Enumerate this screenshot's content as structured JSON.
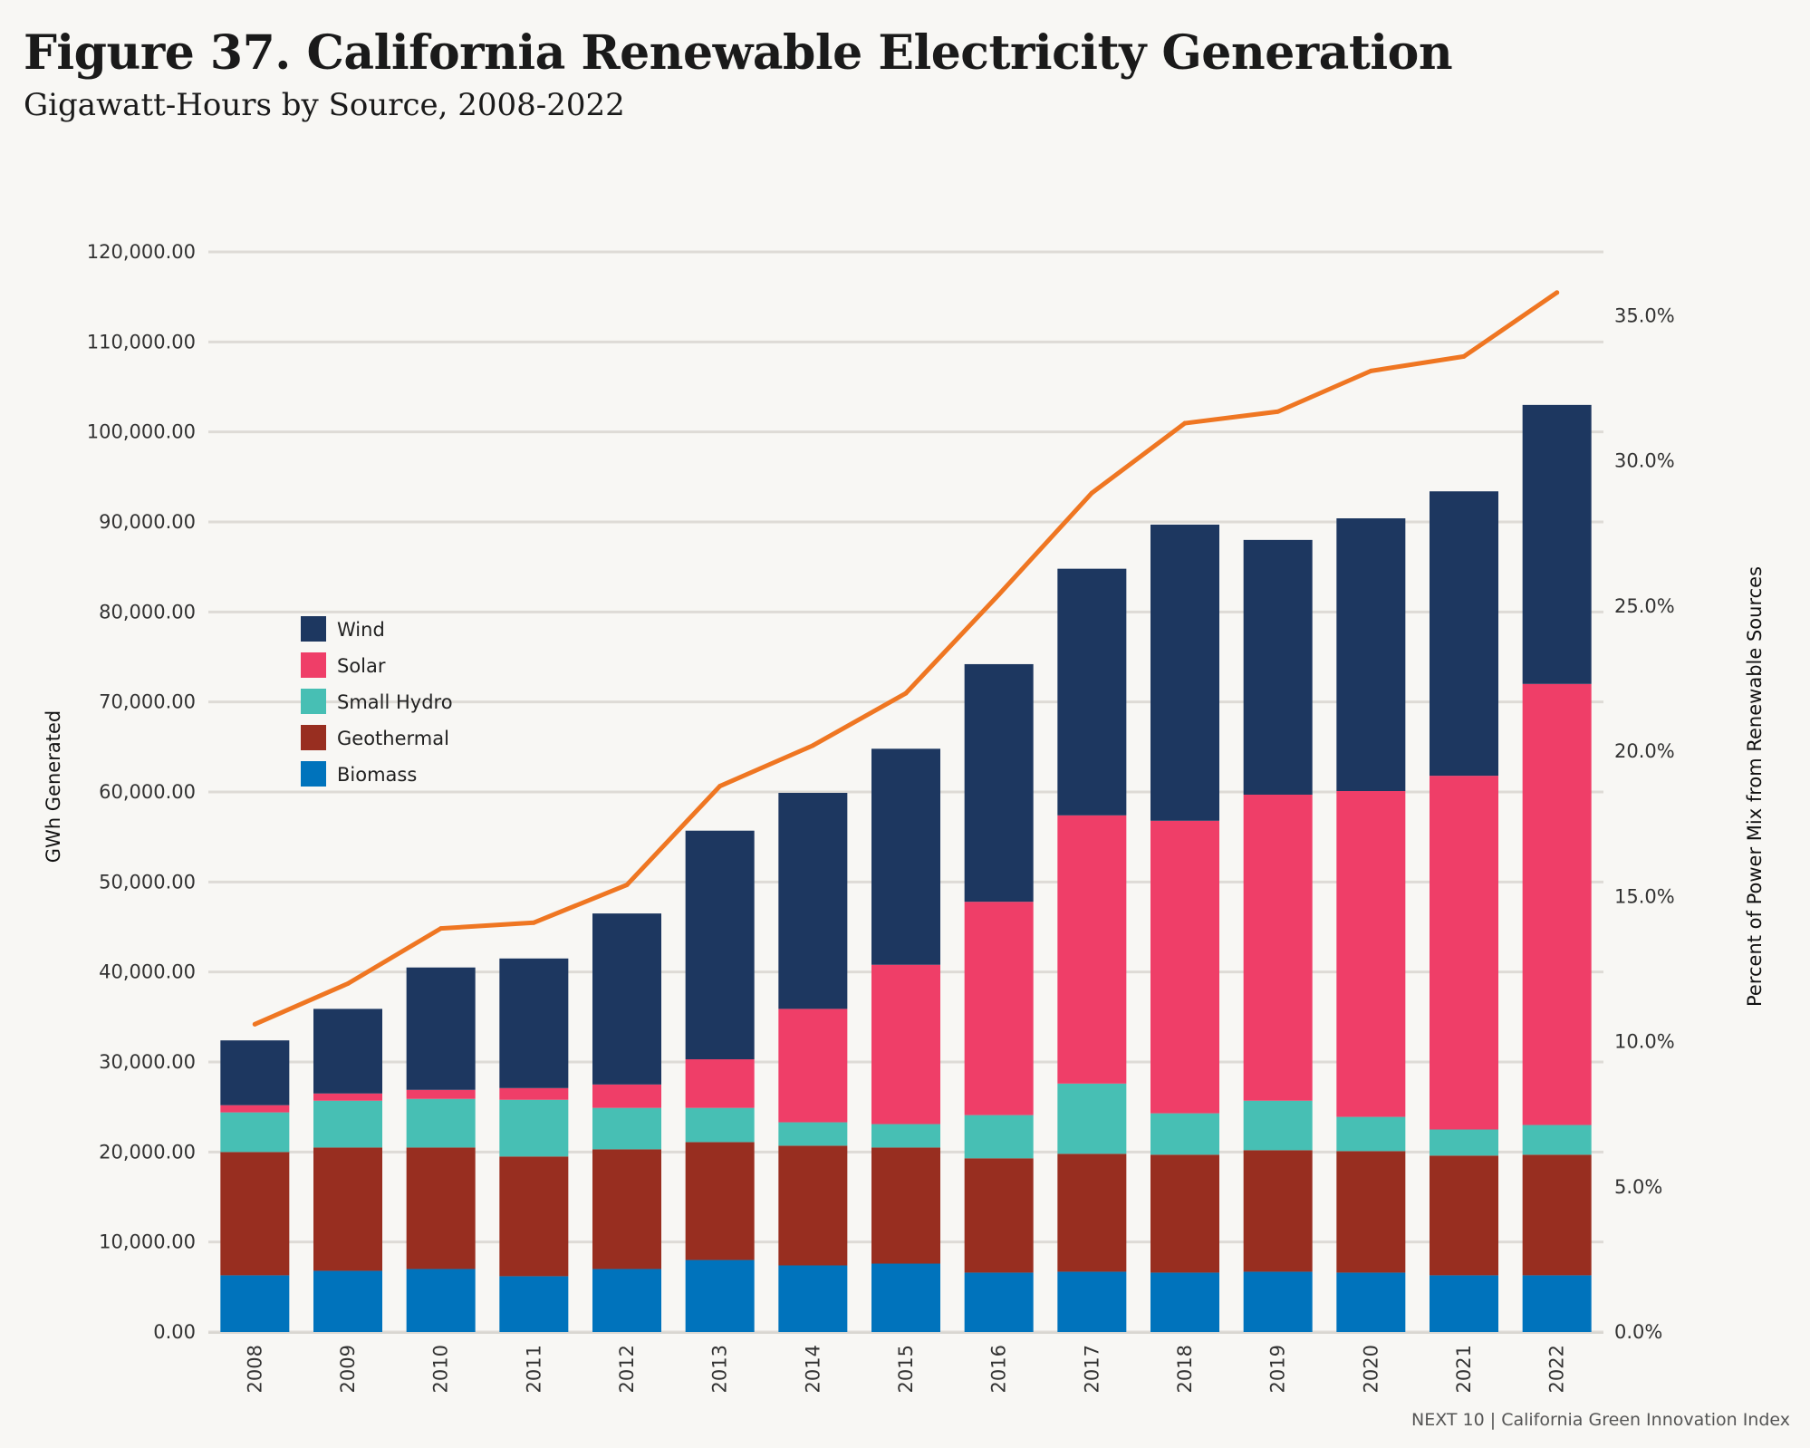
{
  "header": {
    "title": "Figure 37. California Renewable Electricity Generation",
    "subtitle": "Gigawatt-Hours by Source, 2008-2022"
  },
  "footer": {
    "source": "NEXT 10 | California Green Innovation Index"
  },
  "chart_data": {
    "type": "bar",
    "stacked": true,
    "categories": [
      "2008",
      "2009",
      "2010",
      "2011",
      "2012",
      "2013",
      "2014",
      "2015",
      "2016",
      "2017",
      "2018",
      "2019",
      "2020",
      "2021",
      "2022"
    ],
    "ylabel": "GWh Generated",
    "ylim": [
      0,
      120000
    ],
    "y_ticks": [
      0,
      10000,
      20000,
      30000,
      40000,
      50000,
      60000,
      70000,
      80000,
      90000,
      100000,
      110000,
      120000
    ],
    "y_tick_labels": [
      "0.00",
      "10,000.00",
      "20,000.00",
      "30,000.00",
      "40,000.00",
      "50,000.00",
      "60,000.00",
      "70,000.00",
      "80,000.00",
      "90,000.00",
      "100,000.00",
      "110,000.00",
      "120,000.00"
    ],
    "y2label": "Percent of Power Mix from Renewable Sources",
    "y2lim": [
      0,
      0.372
    ],
    "y2_ticks": [
      0,
      0.05,
      0.1,
      0.15,
      0.2,
      0.25,
      0.3,
      0.35
    ],
    "y2_tick_labels": [
      "0.0%",
      "5.0%",
      "10.0%",
      "15.0%",
      "20.0%",
      "25.0%",
      "30.0%",
      "35.0%"
    ],
    "grid": true,
    "legend_position": "left",
    "series": [
      {
        "name": "Biomass",
        "color": "#0073bc",
        "values": [
          6300,
          6800,
          7000,
          6200,
          7000,
          8000,
          7400,
          7600,
          6600,
          6700,
          6600,
          6700,
          6600,
          6300,
          6300
        ]
      },
      {
        "name": "Geothermal",
        "color": "#982e20",
        "values": [
          13700,
          13700,
          13500,
          13300,
          13300,
          13100,
          13300,
          12900,
          12700,
          13100,
          13100,
          13500,
          13500,
          13300,
          13400
        ]
      },
      {
        "name": "Small Hydro",
        "color": "#47bfb4",
        "values": [
          4400,
          5200,
          5400,
          6300,
          4600,
          3800,
          2600,
          2600,
          4800,
          7800,
          4600,
          5500,
          3800,
          2900,
          3300
        ]
      },
      {
        "name": "Solar",
        "color": "#ef3e68",
        "values": [
          800,
          800,
          1000,
          1300,
          2600,
          5400,
          12600,
          17700,
          23700,
          29800,
          32500,
          34000,
          36200,
          39300,
          49000
        ]
      },
      {
        "name": "Wind",
        "color": "#1d3760",
        "values": [
          7200,
          9400,
          13600,
          14400,
          19000,
          25400,
          24000,
          24000,
          26400,
          27400,
          32900,
          28300,
          30300,
          31600,
          31000
        ]
      }
    ],
    "line": {
      "name": "Percent of Power Mix from Renewable Sources",
      "color": "#ef7622",
      "axis": "y2",
      "values": [
        0.106,
        0.12,
        0.139,
        0.141,
        0.154,
        0.188,
        0.202,
        0.22,
        0.254,
        0.289,
        0.313,
        0.317,
        0.331,
        0.336,
        0.358
      ]
    }
  }
}
